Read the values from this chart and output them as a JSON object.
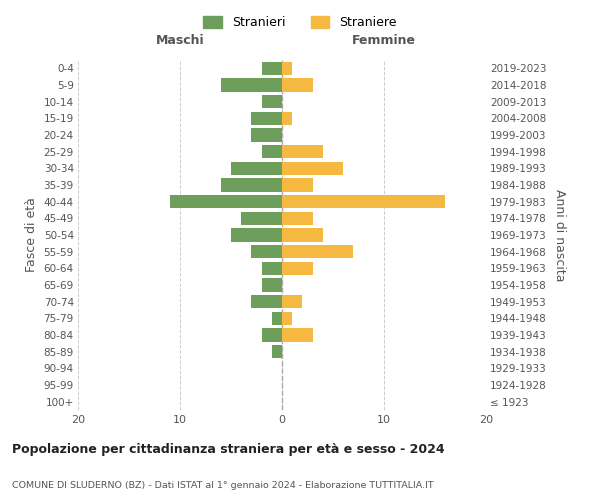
{
  "age_groups": [
    "100+",
    "95-99",
    "90-94",
    "85-89",
    "80-84",
    "75-79",
    "70-74",
    "65-69",
    "60-64",
    "55-59",
    "50-54",
    "45-49",
    "40-44",
    "35-39",
    "30-34",
    "25-29",
    "20-24",
    "15-19",
    "10-14",
    "5-9",
    "0-4"
  ],
  "birth_years": [
    "≤ 1923",
    "1924-1928",
    "1929-1933",
    "1934-1938",
    "1939-1943",
    "1944-1948",
    "1949-1953",
    "1954-1958",
    "1959-1963",
    "1964-1968",
    "1969-1973",
    "1974-1978",
    "1979-1983",
    "1984-1988",
    "1989-1993",
    "1994-1998",
    "1999-2003",
    "2004-2008",
    "2009-2013",
    "2014-2018",
    "2019-2023"
  ],
  "maschi": [
    0,
    0,
    0,
    1,
    2,
    1,
    3,
    2,
    2,
    3,
    5,
    4,
    11,
    6,
    5,
    2,
    3,
    3,
    2,
    6,
    2
  ],
  "femmine": [
    0,
    0,
    0,
    0,
    3,
    1,
    2,
    0,
    3,
    7,
    4,
    3,
    16,
    3,
    6,
    4,
    0,
    1,
    0,
    3,
    1
  ],
  "maschi_color": "#6d9e5c",
  "femmine_color": "#f5b942",
  "title": "Popolazione per cittadinanza straniera per età e sesso - 2024",
  "subtitle": "COMUNE DI SLUDERNO (BZ) - Dati ISTAT al 1° gennaio 2024 - Elaborazione TUTTITALIA.IT",
  "xlabel_left": "Maschi",
  "xlabel_right": "Femmine",
  "ylabel": "Fasce di età",
  "ylabel_right": "Anni di nascita",
  "legend_maschi": "Stranieri",
  "legend_femmine": "Straniere",
  "xlim": 20,
  "background_color": "#ffffff",
  "grid_color": "#cccccc",
  "bar_height": 0.8
}
